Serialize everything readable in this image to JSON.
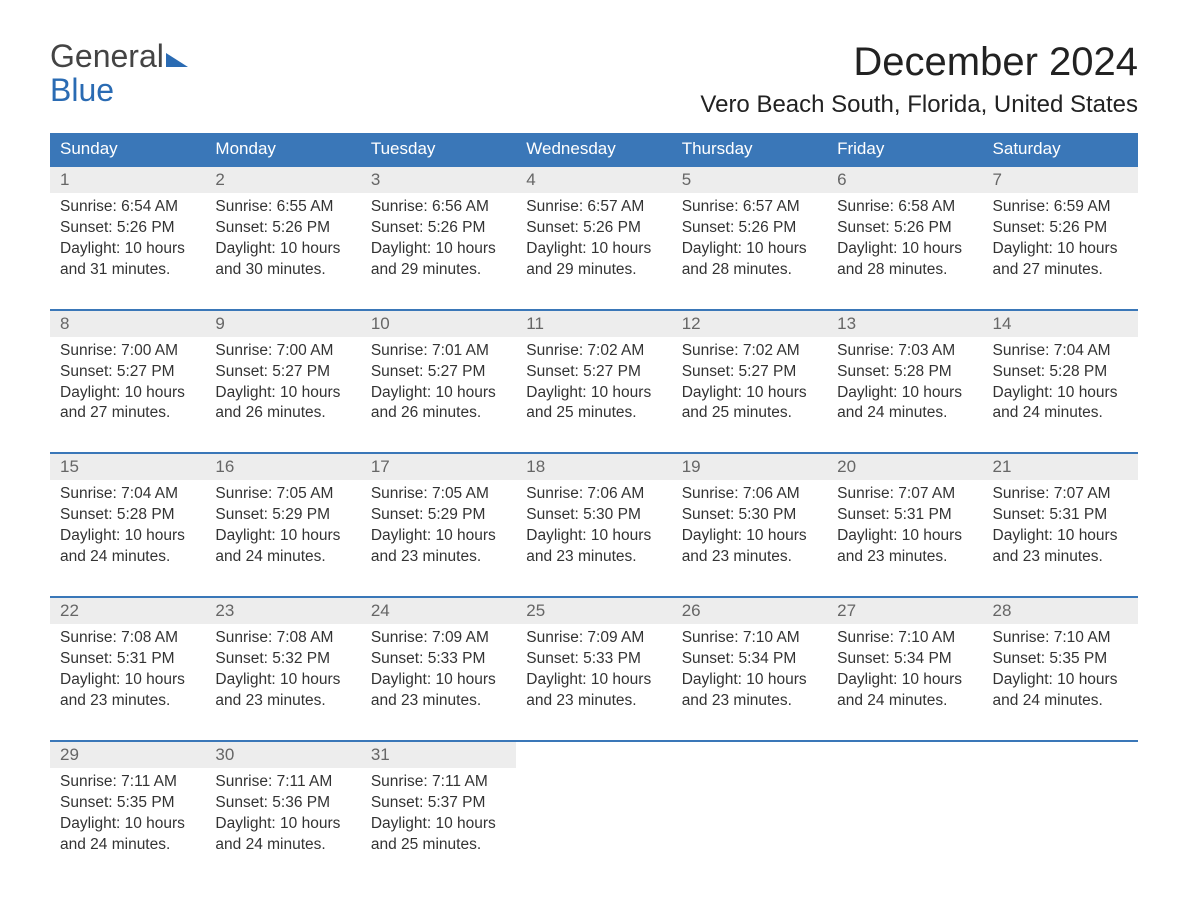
{
  "brand": {
    "line1": "General",
    "line2": "Blue"
  },
  "title": "December 2024",
  "location": "Vero Beach South, Florida, United States",
  "colors": {
    "header_bg": "#3a77b8",
    "header_text": "#ffffff",
    "daynum_bg": "#ededed",
    "daynum_text": "#666666",
    "body_text": "#333333",
    "brand_blue": "#2a6bb3"
  },
  "columns": [
    "Sunday",
    "Monday",
    "Tuesday",
    "Wednesday",
    "Thursday",
    "Friday",
    "Saturday"
  ],
  "weeks": [
    [
      {
        "n": "1",
        "sr": "6:54 AM",
        "ss": "5:26 PM",
        "dl": "10 hours and 31 minutes."
      },
      {
        "n": "2",
        "sr": "6:55 AM",
        "ss": "5:26 PM",
        "dl": "10 hours and 30 minutes."
      },
      {
        "n": "3",
        "sr": "6:56 AM",
        "ss": "5:26 PM",
        "dl": "10 hours and 29 minutes."
      },
      {
        "n": "4",
        "sr": "6:57 AM",
        "ss": "5:26 PM",
        "dl": "10 hours and 29 minutes."
      },
      {
        "n": "5",
        "sr": "6:57 AM",
        "ss": "5:26 PM",
        "dl": "10 hours and 28 minutes."
      },
      {
        "n": "6",
        "sr": "6:58 AM",
        "ss": "5:26 PM",
        "dl": "10 hours and 28 minutes."
      },
      {
        "n": "7",
        "sr": "6:59 AM",
        "ss": "5:26 PM",
        "dl": "10 hours and 27 minutes."
      }
    ],
    [
      {
        "n": "8",
        "sr": "7:00 AM",
        "ss": "5:27 PM",
        "dl": "10 hours and 27 minutes."
      },
      {
        "n": "9",
        "sr": "7:00 AM",
        "ss": "5:27 PM",
        "dl": "10 hours and 26 minutes."
      },
      {
        "n": "10",
        "sr": "7:01 AM",
        "ss": "5:27 PM",
        "dl": "10 hours and 26 minutes."
      },
      {
        "n": "11",
        "sr": "7:02 AM",
        "ss": "5:27 PM",
        "dl": "10 hours and 25 minutes."
      },
      {
        "n": "12",
        "sr": "7:02 AM",
        "ss": "5:27 PM",
        "dl": "10 hours and 25 minutes."
      },
      {
        "n": "13",
        "sr": "7:03 AM",
        "ss": "5:28 PM",
        "dl": "10 hours and 24 minutes."
      },
      {
        "n": "14",
        "sr": "7:04 AM",
        "ss": "5:28 PM",
        "dl": "10 hours and 24 minutes."
      }
    ],
    [
      {
        "n": "15",
        "sr": "7:04 AM",
        "ss": "5:28 PM",
        "dl": "10 hours and 24 minutes."
      },
      {
        "n": "16",
        "sr": "7:05 AM",
        "ss": "5:29 PM",
        "dl": "10 hours and 24 minutes."
      },
      {
        "n": "17",
        "sr": "7:05 AM",
        "ss": "5:29 PM",
        "dl": "10 hours and 23 minutes."
      },
      {
        "n": "18",
        "sr": "7:06 AM",
        "ss": "5:30 PM",
        "dl": "10 hours and 23 minutes."
      },
      {
        "n": "19",
        "sr": "7:06 AM",
        "ss": "5:30 PM",
        "dl": "10 hours and 23 minutes."
      },
      {
        "n": "20",
        "sr": "7:07 AM",
        "ss": "5:31 PM",
        "dl": "10 hours and 23 minutes."
      },
      {
        "n": "21",
        "sr": "7:07 AM",
        "ss": "5:31 PM",
        "dl": "10 hours and 23 minutes."
      }
    ],
    [
      {
        "n": "22",
        "sr": "7:08 AM",
        "ss": "5:31 PM",
        "dl": "10 hours and 23 minutes."
      },
      {
        "n": "23",
        "sr": "7:08 AM",
        "ss": "5:32 PM",
        "dl": "10 hours and 23 minutes."
      },
      {
        "n": "24",
        "sr": "7:09 AM",
        "ss": "5:33 PM",
        "dl": "10 hours and 23 minutes."
      },
      {
        "n": "25",
        "sr": "7:09 AM",
        "ss": "5:33 PM",
        "dl": "10 hours and 23 minutes."
      },
      {
        "n": "26",
        "sr": "7:10 AM",
        "ss": "5:34 PM",
        "dl": "10 hours and 23 minutes."
      },
      {
        "n": "27",
        "sr": "7:10 AM",
        "ss": "5:34 PM",
        "dl": "10 hours and 24 minutes."
      },
      {
        "n": "28",
        "sr": "7:10 AM",
        "ss": "5:35 PM",
        "dl": "10 hours and 24 minutes."
      }
    ],
    [
      {
        "n": "29",
        "sr": "7:11 AM",
        "ss": "5:35 PM",
        "dl": "10 hours and 24 minutes."
      },
      {
        "n": "30",
        "sr": "7:11 AM",
        "ss": "5:36 PM",
        "dl": "10 hours and 24 minutes."
      },
      {
        "n": "31",
        "sr": "7:11 AM",
        "ss": "5:37 PM",
        "dl": "10 hours and 25 minutes."
      },
      null,
      null,
      null,
      null
    ]
  ],
  "labels": {
    "sunrise": "Sunrise:",
    "sunset": "Sunset:",
    "daylight": "Daylight:"
  }
}
